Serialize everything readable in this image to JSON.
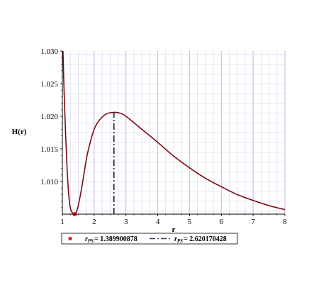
{
  "chart_data": {
    "type": "line",
    "xlabel": "r",
    "ylabel": "H(r)",
    "xlim": [
      1,
      8
    ],
    "ylim": [
      1.005,
      1.03
    ],
    "x_ticks": [
      "1",
      "2",
      "3",
      "4",
      "5",
      "6",
      "7",
      "8"
    ],
    "y_ticks": [
      "1.010",
      "1.015",
      "1.020",
      "1.025",
      "1.030"
    ],
    "grid": true,
    "curve": {
      "color": "#7a0a14",
      "points": [
        [
          1.02,
          1.03
        ],
        [
          1.05,
          1.0245
        ],
        [
          1.1,
          1.0175
        ],
        [
          1.15,
          1.0118
        ],
        [
          1.2,
          1.008
        ],
        [
          1.25,
          1.006
        ],
        [
          1.3,
          1.0053
        ],
        [
          1.39,
          1.005
        ],
        [
          1.45,
          1.0055
        ],
        [
          1.5,
          1.0063
        ],
        [
          1.6,
          1.0088
        ],
        [
          1.7,
          1.0118
        ],
        [
          1.8,
          1.0145
        ],
        [
          2.0,
          1.018
        ],
        [
          2.2,
          1.0196
        ],
        [
          2.4,
          1.0204
        ],
        [
          2.62,
          1.0206
        ],
        [
          2.8,
          1.0205
        ],
        [
          3.0,
          1.02
        ],
        [
          3.5,
          1.018
        ],
        [
          4.0,
          1.016
        ],
        [
          4.5,
          1.0139
        ],
        [
          5.0,
          1.0121
        ],
        [
          5.5,
          1.0105
        ],
        [
          6.0,
          1.0092
        ],
        [
          6.5,
          1.008
        ],
        [
          7.0,
          1.0071
        ],
        [
          7.5,
          1.0063
        ],
        [
          8.0,
          1.0057
        ]
      ]
    },
    "markers": [
      {
        "type": "point",
        "r": 1.389900878,
        "value": 1.005,
        "color": "#e8191e"
      },
      {
        "type": "vline",
        "r": 2.620170428,
        "from": 1.005,
        "to": 1.0206,
        "color": "#2e3f63"
      }
    ],
    "legend": {
      "placement": "bottom",
      "entries": [
        {
          "label_sym": "r",
          "label_sub": "PS",
          "label_value": "= 1.389900878",
          "style": "point",
          "color": "#e8191e"
        },
        {
          "label_sym": "r",
          "label_sub": "PS",
          "label_value": "= 2.620170428",
          "style": "dashdot",
          "color": "#2e3f63"
        }
      ]
    }
  }
}
